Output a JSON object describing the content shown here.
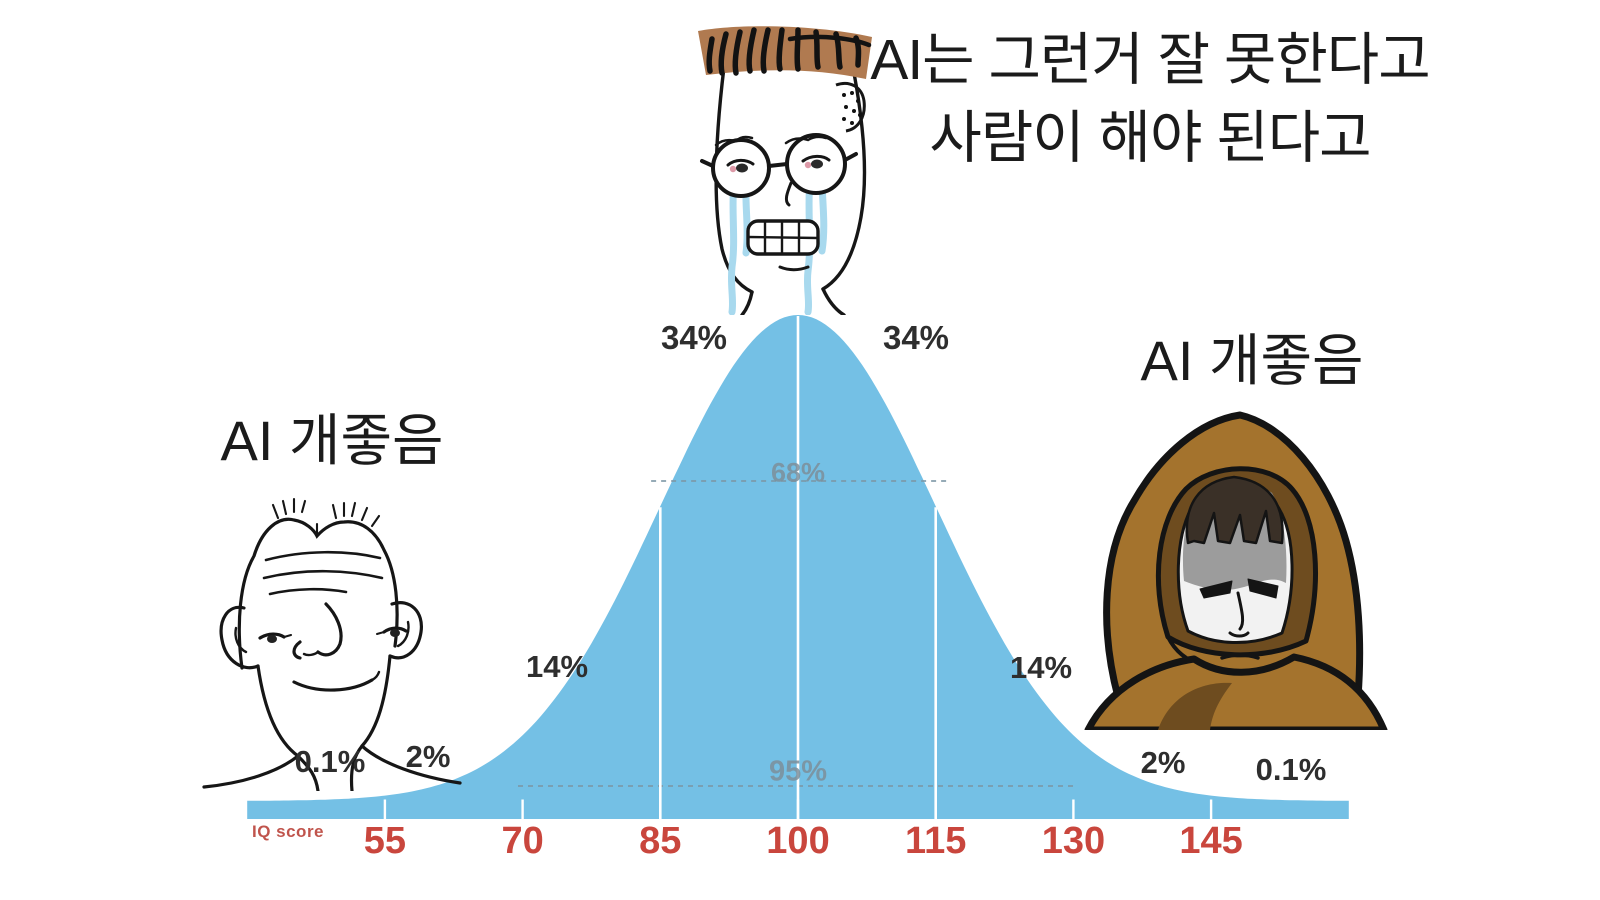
{
  "meme": {
    "top_caption": {
      "line1": "AI는 그런거 잘 못한다고",
      "line2": "사람이 해야 된다고"
    },
    "left_caption": "AI 개좋음",
    "right_caption": "AI 개좋음",
    "characters": [
      "brainlet-wojak",
      "midwit-crying-wojak",
      "hooded-wojak"
    ]
  },
  "chart_data": {
    "type": "area",
    "distribution": "normal-bell-curve",
    "mean": 100,
    "sd": 15,
    "x_range": [
      40,
      160
    ],
    "xlabel": "IQ score",
    "x_ticks": [
      55,
      70,
      85,
      100,
      115,
      130,
      145
    ],
    "segment_percentages": [
      "0.1%",
      "2%",
      "14%",
      "34%",
      "34%",
      "14%",
      "2%",
      "0.1%"
    ],
    "interval_labels": [
      {
        "label": "68%",
        "from": 85,
        "to": 115
      },
      {
        "label": "95%",
        "from": 70,
        "to": 130
      }
    ],
    "grid": false,
    "legend": false,
    "colors": {
      "curve_fill": "#74c0e5",
      "tick_text": "#c9463d",
      "interval_text": "#7d8f9b",
      "percent_text": "#2e2e2e",
      "caption_text": "#1b1b1b",
      "dash_line": "#7c97a6"
    }
  }
}
